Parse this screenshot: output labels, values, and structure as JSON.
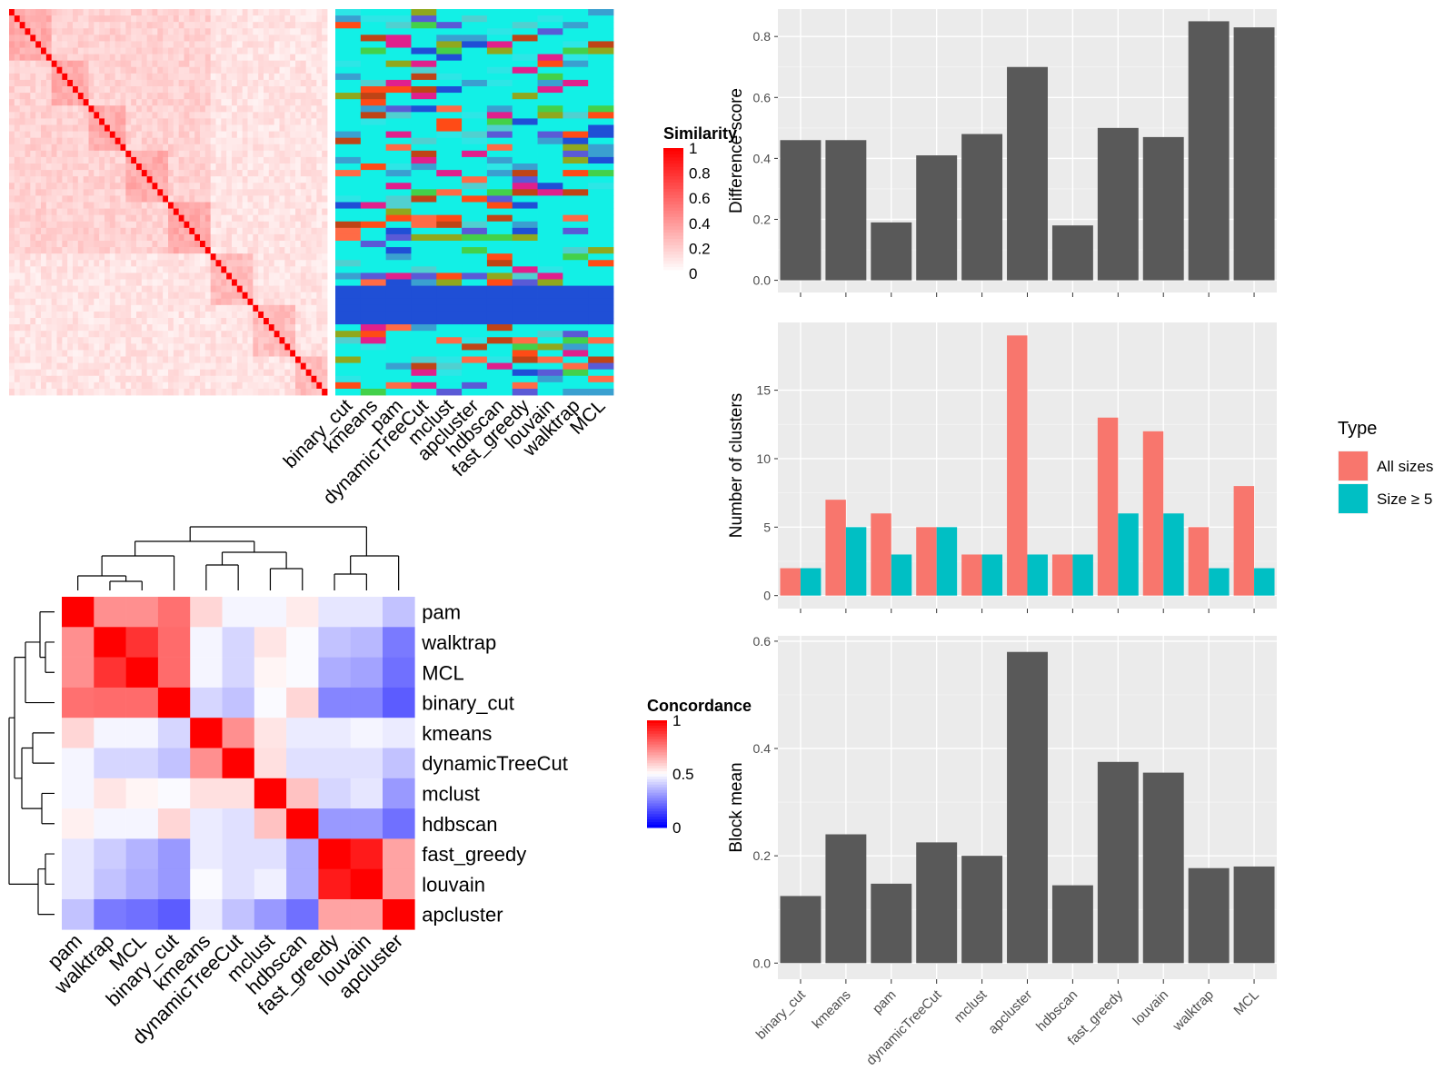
{
  "chart_data": [
    {
      "type": "heatmap",
      "id": "similarity-heatmap",
      "legend_title": "Similarity",
      "legend_ticks": [
        "1",
        "0.8",
        "0.6",
        "0.4",
        "0.2",
        "0"
      ],
      "color_low": "#ffffff",
      "color_high": "#ff0000",
      "n": 60,
      "annotation_columns": [
        "binary_cut",
        "kmeans",
        "pam",
        "dynamicTreeCut",
        "mclust",
        "apcluster",
        "hdbscan",
        "fast_greedy",
        "louvain",
        "walktrap",
        "MCL"
      ],
      "cluster_palette": [
        "#12f0e6",
        "#e0208c",
        "#43d14a",
        "#5a5ad6",
        "#ff4b16",
        "#bf4416",
        "#8fa81e",
        "#2de6e6",
        "#1f4fd6",
        "#ff6b46",
        "#3aa0d0",
        "#50d0d0"
      ]
    },
    {
      "type": "heatmap",
      "id": "concordance-heatmap",
      "legend_title": "Concordance",
      "legend_ticks": [
        "1",
        "0.5",
        "0"
      ],
      "color_low": "#0000ff",
      "color_mid": "#ffffff",
      "color_high": "#ff0000",
      "row_labels": [
        "pam",
        "walktrap",
        "MCL",
        "binary_cut",
        "kmeans",
        "dynamicTreeCut",
        "mclust",
        "hdbscan",
        "fast_greedy",
        "louvain",
        "apcluster"
      ],
      "col_labels": [
        "pam",
        "walktrap",
        "MCL",
        "binary_cut",
        "kmeans",
        "dynamicTreeCut",
        "mclust",
        "hdbscan",
        "fast_greedy",
        "louvain",
        "apcluster"
      ],
      "values": [
        [
          1.0,
          0.72,
          0.72,
          0.78,
          0.58,
          0.48,
          0.48,
          0.54,
          0.45,
          0.45,
          0.38
        ],
        [
          0.72,
          1.0,
          0.9,
          0.79,
          0.48,
          0.42,
          0.55,
          0.49,
          0.38,
          0.36,
          0.24
        ],
        [
          0.72,
          0.9,
          1.0,
          0.79,
          0.48,
          0.42,
          0.52,
          0.49,
          0.34,
          0.32,
          0.22
        ],
        [
          0.78,
          0.79,
          0.79,
          1.0,
          0.42,
          0.38,
          0.49,
          0.58,
          0.26,
          0.26,
          0.18
        ],
        [
          0.58,
          0.48,
          0.48,
          0.42,
          1.0,
          0.72,
          0.55,
          0.46,
          0.46,
          0.48,
          0.46
        ],
        [
          0.48,
          0.42,
          0.42,
          0.38,
          0.72,
          1.0,
          0.56,
          0.44,
          0.44,
          0.44,
          0.38
        ],
        [
          0.48,
          0.55,
          0.52,
          0.49,
          0.56,
          0.56,
          1.0,
          0.62,
          0.42,
          0.45,
          0.3
        ],
        [
          0.53,
          0.48,
          0.48,
          0.58,
          0.46,
          0.44,
          0.62,
          1.0,
          0.3,
          0.3,
          0.22
        ],
        [
          0.45,
          0.4,
          0.35,
          0.3,
          0.46,
          0.44,
          0.44,
          0.34,
          1.0,
          0.95,
          0.68
        ],
        [
          0.45,
          0.38,
          0.34,
          0.3,
          0.49,
          0.44,
          0.47,
          0.34,
          0.95,
          1.0,
          0.68
        ],
        [
          0.38,
          0.24,
          0.22,
          0.18,
          0.46,
          0.38,
          0.3,
          0.22,
          0.68,
          0.68,
          1.0
        ]
      ]
    },
    {
      "type": "bar",
      "id": "difference-score",
      "categories": [
        "binary_cut",
        "kmeans",
        "pam",
        "dynamicTreeCut",
        "mclust",
        "apcluster",
        "hdbscan",
        "fast_greedy",
        "louvain",
        "walktrap",
        "MCL"
      ],
      "values": [
        0.46,
        0.46,
        0.19,
        0.41,
        0.48,
        0.7,
        0.18,
        0.5,
        0.47,
        0.85,
        0.83
      ],
      "ylabel": "Difference score",
      "ylim": [
        -0.04,
        0.89
      ],
      "yticks": [
        "0.0",
        "0.2",
        "0.4",
        "0.6",
        "0.8"
      ],
      "bar_color": "#595959"
    },
    {
      "type": "bar",
      "id": "number-of-clusters",
      "categories": [
        "binary_cut",
        "kmeans",
        "pam",
        "dynamicTreeCut",
        "mclust",
        "apcluster",
        "hdbscan",
        "fast_greedy",
        "louvain",
        "walktrap",
        "MCL"
      ],
      "series": [
        {
          "name": "All sizes",
          "color": "#f8766d",
          "values": [
            2,
            7,
            6,
            5,
            3,
            19,
            3,
            13,
            12,
            5,
            8
          ]
        },
        {
          "name": "Size ≥ 5",
          "color": "#00bfc4",
          "values": [
            2,
            5,
            3,
            5,
            3,
            3,
            3,
            6,
            6,
            2,
            2
          ]
        }
      ],
      "ylabel": "Number of clusters",
      "ylim": [
        -0.95,
        19.95
      ],
      "yticks": [
        "0",
        "5",
        "10",
        "15"
      ],
      "legend_title": "Type",
      "legend_position": "right"
    },
    {
      "type": "bar",
      "id": "block-mean",
      "categories": [
        "binary_cut",
        "kmeans",
        "pam",
        "dynamicTreeCut",
        "mclust",
        "apcluster",
        "hdbscan",
        "fast_greedy",
        "louvain",
        "walktrap",
        "MCL"
      ],
      "values": [
        0.125,
        0.24,
        0.148,
        0.225,
        0.2,
        0.58,
        0.145,
        0.375,
        0.355,
        0.177,
        0.18
      ],
      "ylabel": "Block mean",
      "ylim": [
        -0.03,
        0.61
      ],
      "yticks": [
        "0.0",
        "0.2",
        "0.4",
        "0.6"
      ],
      "bar_color": "#595959"
    }
  ]
}
